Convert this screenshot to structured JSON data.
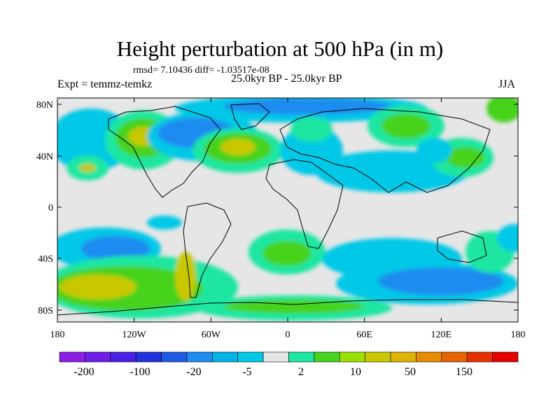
{
  "title": "Height perturbation at 500 hPa (in m)",
  "stats": "rmsd= 7.10436 diff= -1.03517e-08",
  "experiment": "Expt = temmz-temkz",
  "period": "25.0kyr BP - 25.0kyr BP",
  "season": "JJA",
  "colors": {
    "m5": "#00c8e6",
    "m20": "#1e8cf0",
    "m100": "#1a4fd6",
    "p2": "#1ee6a0",
    "p10": "#46d21e",
    "p50": "#c8c800",
    "p150": "#e66400",
    "zero": "#e6e6e6"
  },
  "map": {
    "x_ticks": [
      "180",
      "120W",
      "60W",
      "0",
      "60E",
      "120E",
      "180"
    ],
    "y_ticks": [
      "80N",
      "40N",
      "0",
      "40S",
      "80S"
    ]
  },
  "colorbar": {
    "colors": [
      "#8c1ee6",
      "#6e1ee6",
      "#4b1ee6",
      "#1e32dc",
      "#1e5ae6",
      "#1e8cf0",
      "#00b4e6",
      "#00c8e6",
      "#e6e6e6",
      "#1ee6a0",
      "#46d21e",
      "#9be100",
      "#c8c800",
      "#dcb400",
      "#e68c00",
      "#e66400",
      "#e63200",
      "#e60000"
    ],
    "labels": [
      "-200",
      "-100",
      "-20",
      "-5",
      "2",
      "10",
      "50",
      "150"
    ]
  }
}
